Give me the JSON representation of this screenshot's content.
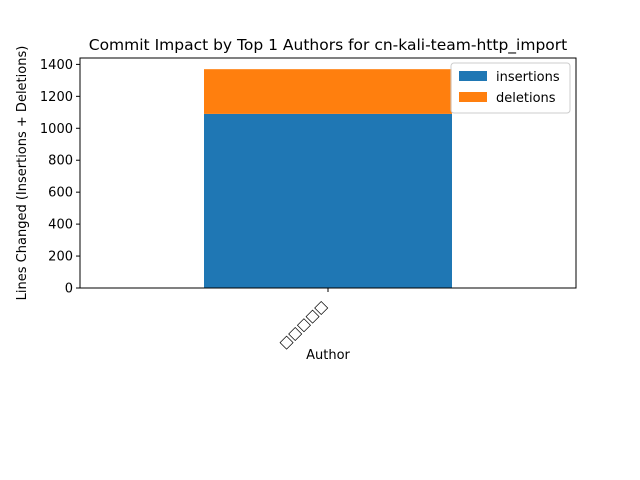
{
  "chart_data": {
    "type": "bar",
    "stacked": true,
    "title": "Commit Impact by Top 1 Authors for cn-kali-team-http_import",
    "xlabel": "Author",
    "ylabel": "Lines Changed (Insertions + Deletions)",
    "categories": [
      "□□□□□"
    ],
    "series": [
      {
        "name": "insertions",
        "values": [
          1090
        ],
        "color": "#1f77b4"
      },
      {
        "name": "deletions",
        "values": [
          280
        ],
        "color": "#ff7f0e"
      }
    ],
    "ylim": [
      0,
      1440
    ],
    "yticks": [
      0,
      200,
      400,
      600,
      800,
      1000,
      1200,
      1400
    ],
    "grid": false,
    "legend": "top-right"
  }
}
